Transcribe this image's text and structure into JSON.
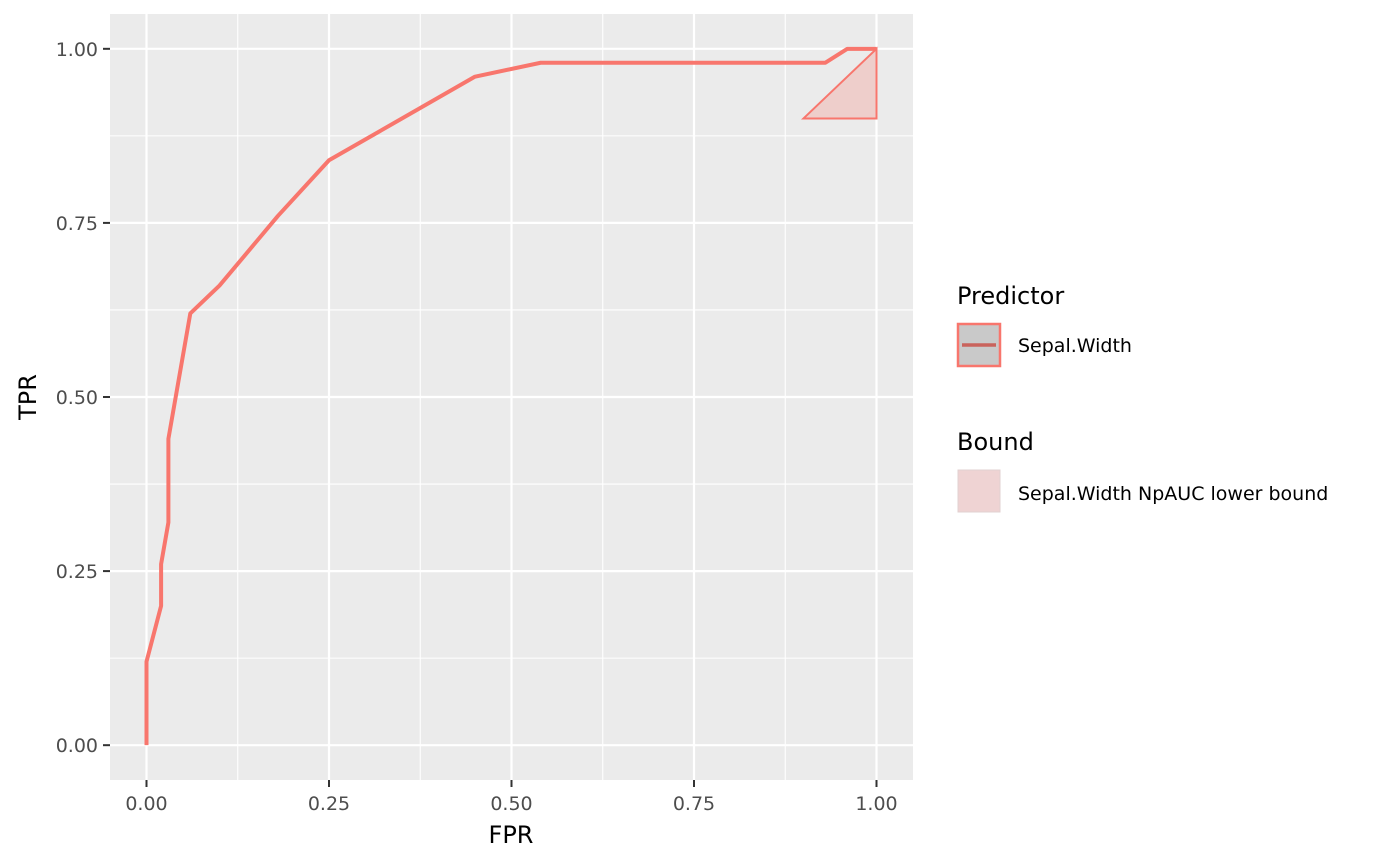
{
  "chart_data": {
    "type": "line",
    "xlabel": "FPR",
    "ylabel": "TPR",
    "xlim": [
      -0.05,
      1.05
    ],
    "ylim": [
      -0.05,
      1.05
    ],
    "x_ticks": [
      0,
      0.25,
      0.5,
      0.75,
      1
    ],
    "x_tick_labels": [
      "0.00",
      "0.25",
      "0.50",
      "0.75",
      "1.00"
    ],
    "y_ticks": [
      0,
      0.25,
      0.5,
      0.75,
      1
    ],
    "y_tick_labels": [
      "0.00",
      "0.25",
      "0.50",
      "0.75",
      "1.00"
    ],
    "grid": true,
    "legend_position": "right",
    "series": [
      {
        "name": "Sepal.Width",
        "color": "#F8766D",
        "x": [
          0,
          0,
          0.02,
          0.02,
          0.03,
          0.03,
          0.06,
          0.1,
          0.18,
          0.25,
          0.45,
          0.54,
          0.93,
          0.96,
          1.0
        ],
        "y": [
          0,
          0.12,
          0.2,
          0.26,
          0.32,
          0.44,
          0.62,
          0.66,
          0.76,
          0.84,
          0.96,
          0.98,
          0.98,
          1.0,
          1.0
        ]
      }
    ],
    "bound_polygon": {
      "name": "Sepal.Width NpAUC lower bound",
      "fill": "#F8766D",
      "fill_opacity": 0.25,
      "x": [
        0.9,
        1.0,
        1.0
      ],
      "y": [
        0.9,
        1.0,
        0.9
      ]
    },
    "legends": [
      {
        "title": "Predictor",
        "labels": [
          "Sepal.Width"
        ]
      },
      {
        "title": "Bound",
        "labels": [
          "Sepal.Width NpAUC lower bound"
        ]
      }
    ]
  }
}
